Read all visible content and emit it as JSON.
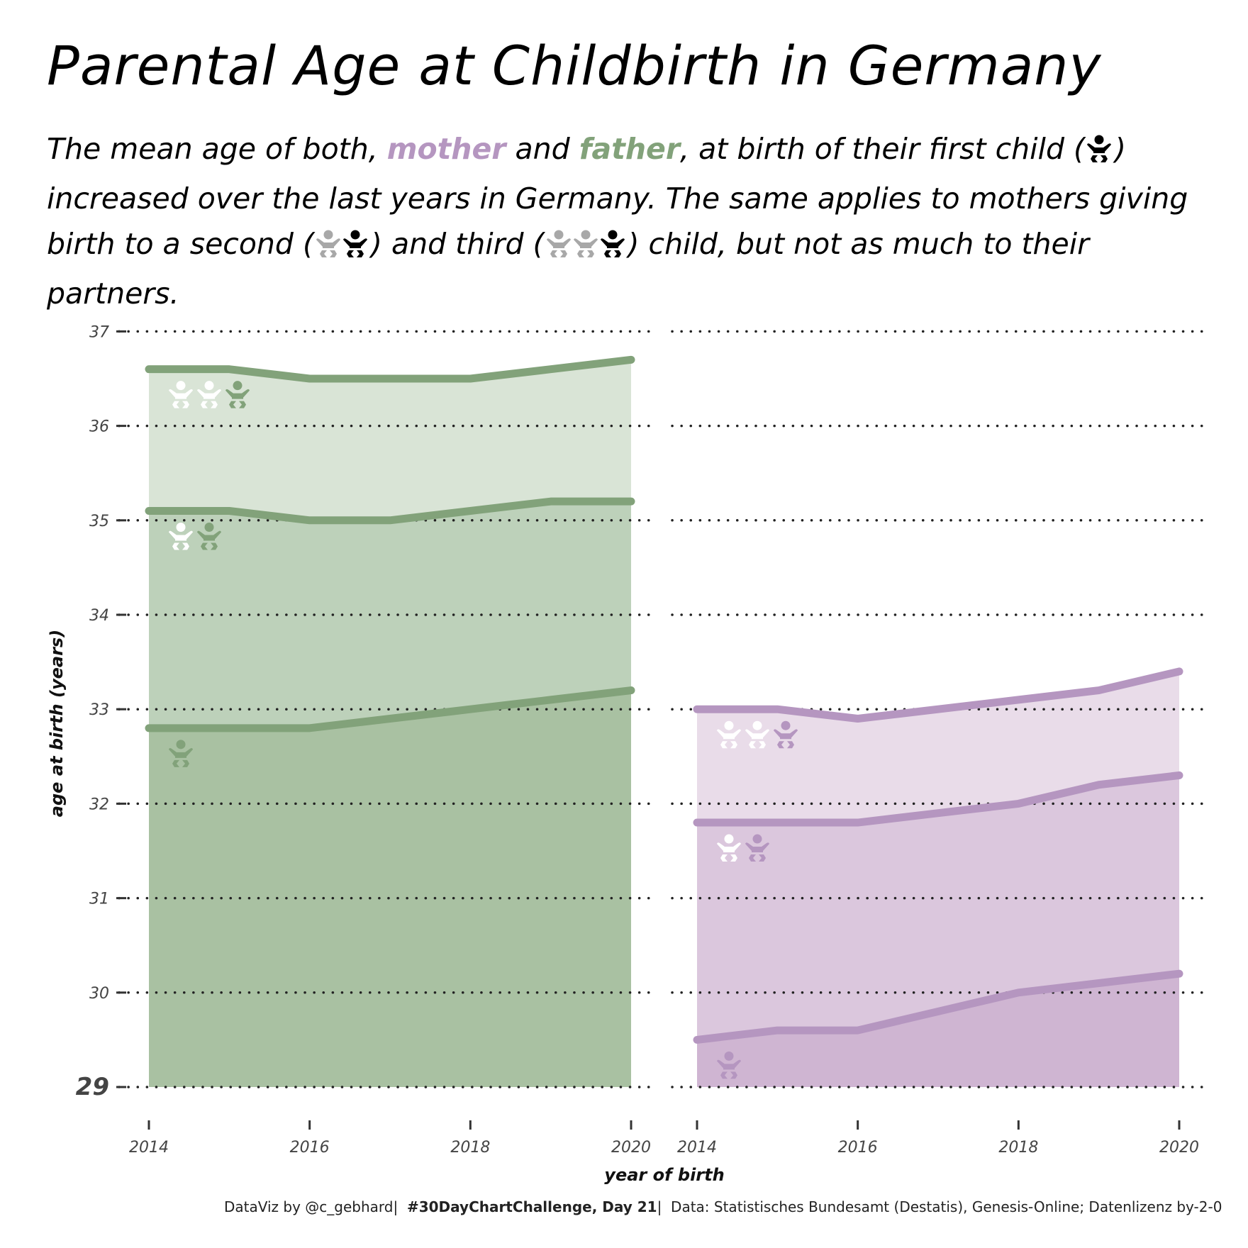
{
  "title": "Parental Age at Childbirth in Germany",
  "subtitle": {
    "part1": "The mean age of both, ",
    "mother": "mother",
    "part2": " and ",
    "father": "father",
    "part3": ", at birth of their first child (",
    "part4": ") increased over the last years in Germany. The same applies to mothers giving birth to a second (",
    "part5": ") and third (",
    "part6": ") child, but not as much to their partners."
  },
  "caption": {
    "author": "DataViz by @c_gebhard",
    "challenge": "#30DayChartChallenge, Day 21",
    "source": "Data: Statistisches Bundesamt (Destatis), Genesis-Online; Datenlizenz by-2-0"
  },
  "colors": {
    "father": "#82a27a",
    "mother": "#b596c0",
    "father_fill": [
      "#a9c1a2",
      "#bdd1ba",
      "#d9e4d6"
    ],
    "mother_fill": [
      "#cfb5d2",
      "#dbc7dd",
      "#e9dce9"
    ]
  },
  "icons": [
    "baby-icon"
  ],
  "chart_data": {
    "type": "area",
    "xlabel": "year of birth",
    "ylabel": "age at birth (years)",
    "ylim": [
      29,
      37
    ],
    "yticks": [
      "29",
      "30",
      "31",
      "32",
      "33",
      "34",
      "35",
      "36",
      "37"
    ],
    "grid": "dotted horizontal",
    "panels": [
      {
        "parent": "father",
        "xticks": [
          "2014",
          "2016",
          "2018",
          "2020"
        ],
        "x": [
          2014,
          2015,
          2016,
          2017,
          2018,
          2019,
          2020
        ],
        "series": [
          {
            "child": 1,
            "values": [
              32.8,
              32.8,
              32.8,
              32.9,
              33.0,
              33.1,
              33.2
            ]
          },
          {
            "child": 2,
            "values": [
              35.1,
              35.1,
              35.0,
              35.0,
              35.1,
              35.2,
              35.2
            ]
          },
          {
            "child": 3,
            "values": [
              36.6,
              36.6,
              36.5,
              36.5,
              36.5,
              36.6,
              36.7
            ]
          }
        ]
      },
      {
        "parent": "mother",
        "xticks": [
          "2014",
          "2016",
          "2018",
          "2020"
        ],
        "x": [
          2014,
          2015,
          2016,
          2017,
          2018,
          2019,
          2020
        ],
        "series": [
          {
            "child": 1,
            "values": [
              29.5,
              29.6,
              29.6,
              29.8,
              30.0,
              30.1,
              30.2
            ]
          },
          {
            "child": 2,
            "values": [
              31.8,
              31.8,
              31.8,
              31.9,
              32.0,
              32.2,
              32.3
            ]
          },
          {
            "child": 3,
            "values": [
              33.0,
              33.0,
              32.9,
              33.0,
              33.1,
              33.2,
              33.4
            ]
          }
        ]
      }
    ]
  }
}
